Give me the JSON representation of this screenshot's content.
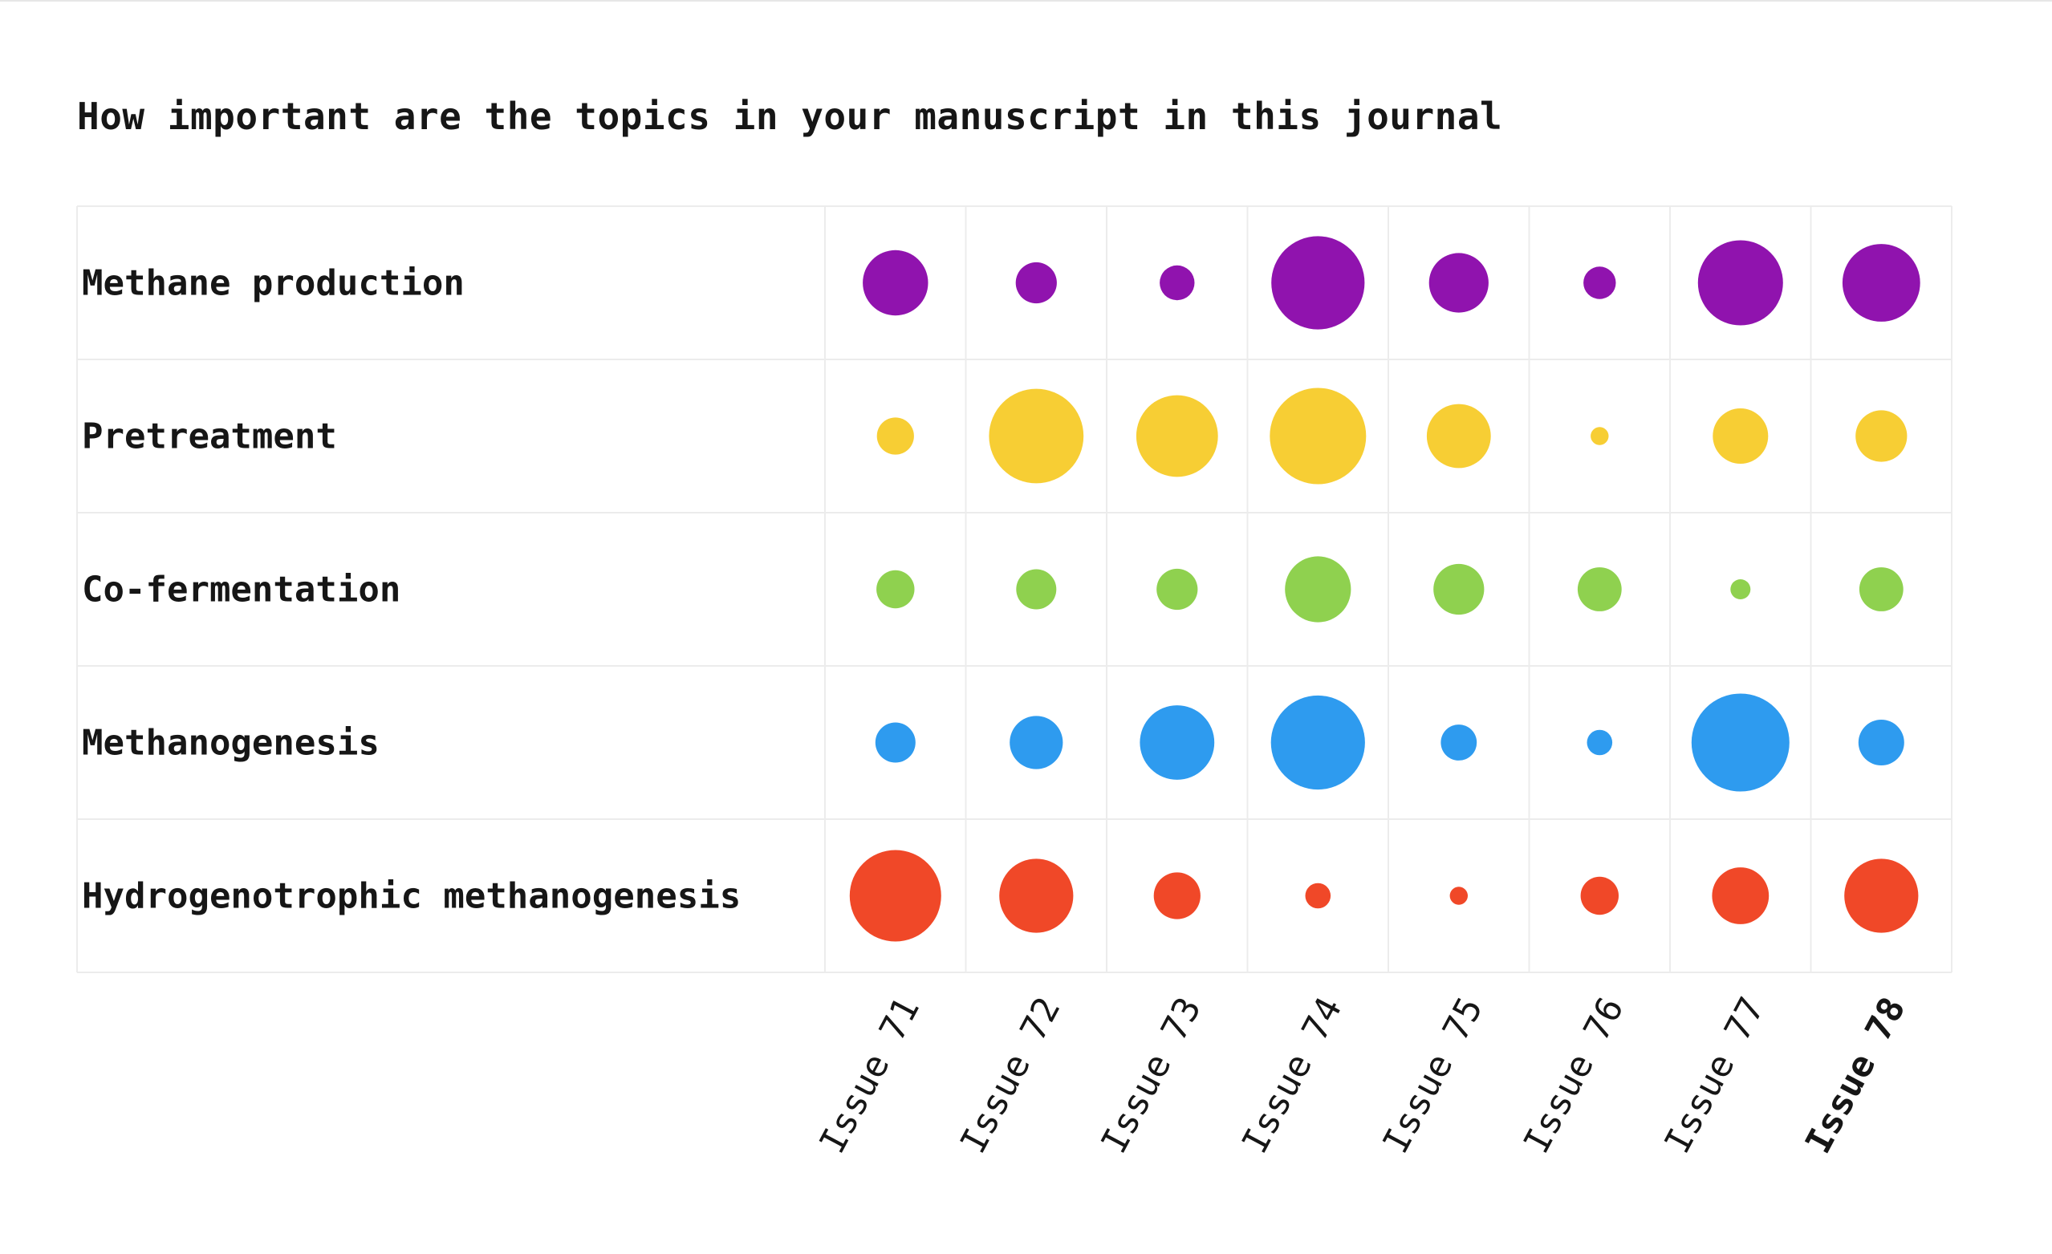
{
  "chart_data": {
    "type": "bubble-matrix",
    "title": "How important are the topics in your manuscript in this journal",
    "columns": [
      "Issue 71",
      "Issue 72",
      "Issue 73",
      "Issue 74",
      "Issue 75",
      "Issue 76",
      "Issue 77",
      "Issue 78"
    ],
    "highlighted_column": "Issue 78",
    "rows": [
      {
        "label": "Methane production",
        "color": "#9013AE",
        "values": [
          5.3,
          2.1,
          1.5,
          10.8,
          4.4,
          1.3,
          9.0,
          7.5
        ]
      },
      {
        "label": "Pretreatment",
        "color": "#F7CE34",
        "values": [
          1.7,
          11.1,
          8.3,
          11.5,
          5.1,
          0.4,
          3.8,
          3.3
        ]
      },
      {
        "label": "Co-fermentation",
        "color": "#8FD14F",
        "values": [
          1.8,
          2.0,
          2.1,
          5.4,
          3.2,
          2.4,
          0.5,
          2.4
        ]
      },
      {
        "label": "Methanogenesis",
        "color": "#2E9BEF",
        "values": [
          2.0,
          3.5,
          6.9,
          11.0,
          1.6,
          0.8,
          11.9,
          2.6
        ]
      },
      {
        "label": "Hydrogenotrophic methanogenesis",
        "color": "#F04828",
        "values": [
          10.4,
          6.8,
          2.7,
          0.8,
          0.4,
          1.8,
          4.0,
          6.8
        ]
      }
    ],
    "grid": true,
    "legend": "none"
  }
}
